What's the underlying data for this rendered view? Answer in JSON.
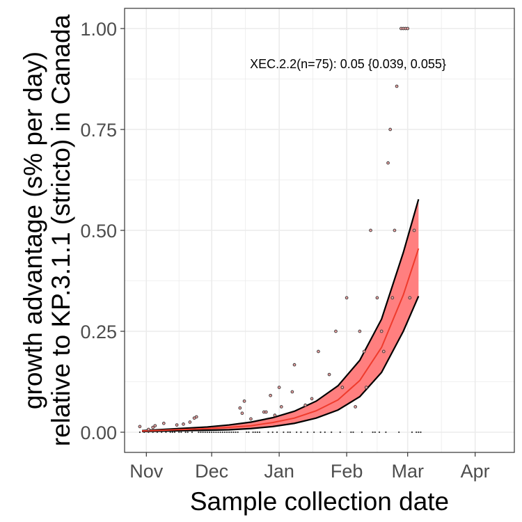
{
  "chart_data": {
    "type": "line",
    "xlabel": "Sample collection date",
    "ylabel_lines": [
      "growth advantage (s% per day)",
      "relative to KP.3.1.1 (stricto) in Canada"
    ],
    "annotation": "XEC.2.2(n=75): 0.05 {0.039, 0.055}",
    "x_range": [
      "2024-10-22",
      "2025-04-19"
    ],
    "y_range": [
      -0.05,
      1.05
    ],
    "x_ticks": [
      {
        "date": "2024-11-01",
        "label": "Nov"
      },
      {
        "date": "2024-12-01",
        "label": "Dec"
      },
      {
        "date": "2025-01-01",
        "label": "Jan"
      },
      {
        "date": "2025-02-01",
        "label": "Feb"
      },
      {
        "date": "2025-03-01",
        "label": "Mar"
      },
      {
        "date": "2025-04-01",
        "label": "Apr"
      }
    ],
    "y_ticks": [
      {
        "value": 0.0,
        "label": "0.00"
      },
      {
        "value": 0.25,
        "label": "0.25"
      },
      {
        "value": 0.5,
        "label": "0.50"
      },
      {
        "value": 0.75,
        "label": "0.75"
      },
      {
        "value": 1.0,
        "label": "1.00"
      }
    ],
    "grid": true,
    "colors": {
      "ribbon": "#ff7f7f",
      "fit_line": "#ef3b2c",
      "bounds": "#000000",
      "point_fill": "#e8a0a0",
      "point_stroke": "#333333",
      "grid": "#ebebeb",
      "panel_border": "#333333"
    },
    "series": [
      {
        "role": "fit",
        "x": [
          "2024-10-30",
          "2024-11-09",
          "2024-11-19",
          "2024-11-29",
          "2024-12-09",
          "2024-12-19",
          "2024-12-29",
          "2025-01-08",
          "2025-01-18",
          "2025-01-28",
          "2025-02-07",
          "2025-02-17",
          "2025-02-27",
          "2025-03-06"
        ],
        "y": [
          0.003,
          0.005,
          0.007,
          0.009,
          0.012,
          0.016,
          0.024,
          0.035,
          0.053,
          0.08,
          0.128,
          0.21,
          0.34,
          0.455
        ],
        "lower": [
          0.002,
          0.003,
          0.004,
          0.005,
          0.006,
          0.009,
          0.014,
          0.022,
          0.035,
          0.055,
          0.088,
          0.148,
          0.25,
          0.337
        ],
        "upper": [
          0.004,
          0.007,
          0.01,
          0.013,
          0.018,
          0.025,
          0.036,
          0.052,
          0.077,
          0.115,
          0.178,
          0.28,
          0.445,
          0.577
        ]
      },
      {
        "role": "observed",
        "points": [
          {
            "x": "2024-10-29",
            "y": 0.014
          },
          {
            "x": "2024-11-02",
            "y": 0.007
          },
          {
            "x": "2024-11-04",
            "y": 0.012
          },
          {
            "x": "2024-11-05",
            "y": 0.016
          },
          {
            "x": "2024-11-09",
            "y": 0.022
          },
          {
            "x": "2024-11-15",
            "y": 0.018
          },
          {
            "x": "2024-11-18",
            "y": 0.02
          },
          {
            "x": "2024-11-21",
            "y": 0.025
          },
          {
            "x": "2024-11-23",
            "y": 0.035
          },
          {
            "x": "2024-11-24",
            "y": 0.038
          },
          {
            "x": "2024-12-14",
            "y": 0.06
          },
          {
            "x": "2024-12-15",
            "y": 0.047
          },
          {
            "x": "2024-12-16",
            "y": 0.077
          },
          {
            "x": "2024-12-19",
            "y": 0.033
          },
          {
            "x": "2024-12-25",
            "y": 0.05
          },
          {
            "x": "2024-12-26",
            "y": 0.05
          },
          {
            "x": "2024-12-28",
            "y": 0.091
          },
          {
            "x": "2024-12-30",
            "y": 0.042
          },
          {
            "x": "2025-01-01",
            "y": 0.111
          },
          {
            "x": "2025-01-02",
            "y": 0.063
          },
          {
            "x": "2025-01-07",
            "y": 0.1
          },
          {
            "x": "2025-01-08",
            "y": 0.167
          },
          {
            "x": "2025-01-13",
            "y": 0.067
          },
          {
            "x": "2025-01-16",
            "y": 0.083
          },
          {
            "x": "2025-01-19",
            "y": 0.2
          },
          {
            "x": "2025-01-24",
            "y": 0.143
          },
          {
            "x": "2025-01-27",
            "y": 0.25
          },
          {
            "x": "2025-01-30",
            "y": 0.111
          },
          {
            "x": "2025-02-01",
            "y": 0.333
          },
          {
            "x": "2025-02-05",
            "y": 0.063
          },
          {
            "x": "2025-02-07",
            "y": 0.25
          },
          {
            "x": "2025-02-09",
            "y": 0.2
          },
          {
            "x": "2025-02-10",
            "y": 0.111
          },
          {
            "x": "2025-02-12",
            "y": 0.5
          },
          {
            "x": "2025-02-15",
            "y": 0.333
          },
          {
            "x": "2025-02-17",
            "y": 0.25
          },
          {
            "x": "2025-02-18",
            "y": 0.2
          },
          {
            "x": "2025-02-20",
            "y": 0.667
          },
          {
            "x": "2025-02-21",
            "y": 0.75
          },
          {
            "x": "2025-02-22",
            "y": 0.333
          },
          {
            "x": "2025-02-23",
            "y": 0.5
          },
          {
            "x": "2025-02-24",
            "y": 0.857
          },
          {
            "x": "2025-02-26",
            "y": 1.0
          },
          {
            "x": "2025-02-27",
            "y": 1.0
          },
          {
            "x": "2025-02-28",
            "y": 1.0
          },
          {
            "x": "2025-03-01",
            "y": 1.0
          },
          {
            "x": "2025-03-02",
            "y": 0.333
          },
          {
            "x": "2025-03-04",
            "y": 0.5
          }
        ]
      },
      {
        "role": "observed_zero",
        "x": [
          "2024-10-29",
          "2024-10-31",
          "2024-11-02",
          "2024-11-04",
          "2024-11-06",
          "2024-11-08",
          "2024-11-10",
          "2024-11-12",
          "2024-11-13",
          "2024-11-14",
          "2024-11-16",
          "2024-11-17",
          "2024-11-19",
          "2024-11-20",
          "2024-11-22",
          "2024-11-25",
          "2024-11-26",
          "2024-11-27",
          "2024-11-28",
          "2024-11-29",
          "2024-11-30",
          "2024-12-01",
          "2024-12-02",
          "2024-12-03",
          "2024-12-04",
          "2024-12-05",
          "2024-12-06",
          "2024-12-07",
          "2024-12-08",
          "2024-12-09",
          "2024-12-10",
          "2024-12-11",
          "2024-12-12",
          "2024-12-13",
          "2024-12-17",
          "2024-12-18",
          "2024-12-20",
          "2024-12-21",
          "2024-12-22",
          "2024-12-23",
          "2024-12-27",
          "2024-12-29",
          "2024-12-31",
          "2025-01-03",
          "2025-01-05",
          "2025-01-06",
          "2025-01-09",
          "2025-01-11",
          "2025-01-14",
          "2025-01-17",
          "2025-01-20",
          "2025-01-22",
          "2025-01-25",
          "2025-01-29",
          "2025-02-03",
          "2025-02-04",
          "2025-02-08",
          "2025-02-13",
          "2025-02-14",
          "2025-02-16",
          "2025-02-19",
          "2025-02-25",
          "2025-03-03",
          "2025-03-05",
          "2025-03-06",
          "2025-03-07"
        ]
      }
    ]
  }
}
